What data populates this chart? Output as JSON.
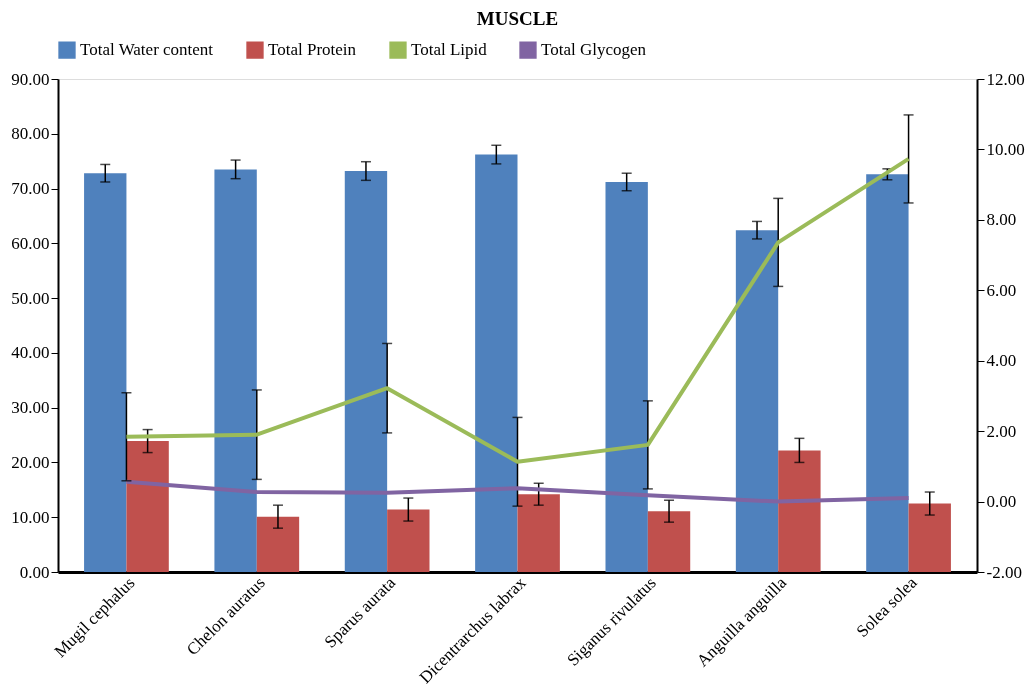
{
  "chart_data": {
    "type": "bar",
    "title": "MUSCLE",
    "categories": [
      "Mugil cephalus",
      "Chelon auratus",
      "Sparus aurata",
      "Dicentrarchus labrax",
      "Siganus rivulatus",
      "Anguilla anguilla",
      "Solea solea"
    ],
    "series": [
      {
        "name": "Total Water content",
        "color": "#4f81bd",
        "values": [
          72.8,
          73.5,
          73.2,
          76.2,
          71.2,
          62.4,
          72.6
        ],
        "errors": [
          1.6,
          1.7,
          1.7,
          1.7,
          1.6,
          1.6,
          1.0
        ]
      },
      {
        "name": "Total Protein",
        "color": "#c0504d",
        "values": [
          23.9,
          10.1,
          11.4,
          14.2,
          11.1,
          22.2,
          12.5
        ],
        "errors": [
          2.1,
          2.1,
          2.1,
          2.0,
          2.0,
          2.2,
          2.1
        ]
      },
      {
        "name": "Total Lipid",
        "type": "line",
        "axis": "y2",
        "color": "#9bbb59",
        "values": [
          1.84,
          1.9,
          3.22,
          1.13,
          1.61,
          7.36,
          9.73
        ],
        "errors": [
          1.25,
          1.27,
          1.27,
          1.26,
          1.25,
          1.25,
          1.25
        ]
      },
      {
        "name": "Total Glycogen",
        "type": "line",
        "axis": "y2",
        "color": "#8064a2",
        "values": [
          0.56,
          0.27,
          0.25,
          0.38,
          0.18,
          0.0,
          0.1
        ]
      }
    ],
    "ylim": [
      0,
      90
    ],
    "yticks": [
      {
        "value": 0,
        "label": "0.00"
      },
      {
        "value": 10,
        "label": "10.00"
      },
      {
        "value": 20,
        "label": "20.00"
      },
      {
        "value": 30,
        "label": "30.00"
      },
      {
        "value": 40,
        "label": "40.00"
      },
      {
        "value": 50,
        "label": "50.00"
      },
      {
        "value": 60,
        "label": "60.00"
      },
      {
        "value": 70,
        "label": "70.00"
      },
      {
        "value": 80,
        "label": "80.00"
      },
      {
        "value": 90,
        "label": "90.00"
      }
    ],
    "y2lim": [
      -2,
      12
    ],
    "y2ticks": [
      {
        "value": -2,
        "label": "-2.00"
      },
      {
        "value": 0,
        "label": "0.00"
      },
      {
        "value": 2,
        "label": "2.00"
      },
      {
        "value": 4,
        "label": "4.00"
      },
      {
        "value": 6,
        "label": "6.00"
      },
      {
        "value": 8,
        "label": "8.00"
      },
      {
        "value": 10,
        "label": "10.00"
      },
      {
        "value": 12,
        "label": "12.00"
      }
    ],
    "grid": false,
    "legend": "top"
  }
}
